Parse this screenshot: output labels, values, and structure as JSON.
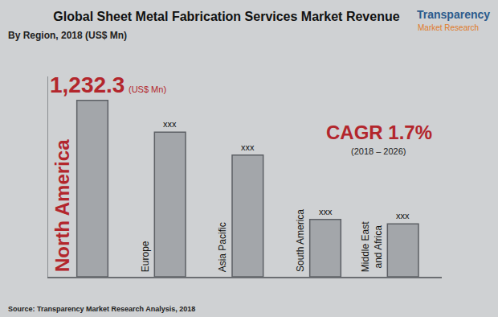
{
  "chart_data": {
    "type": "bar",
    "title": "Global Sheet Metal Fabrication Services Market Revenue",
    "subtitle": "By Region, 2018 (US$ Mn)",
    "categories": [
      "North America",
      "Europe",
      "Asia Pacific",
      "South America",
      "Middle East and Africa"
    ],
    "values": [
      1232.3,
      1010,
      850,
      400,
      370
    ],
    "color": "#a3a6aa",
    "ylim": [
      0,
      1400
    ],
    "grid": false,
    "tick_labels": false,
    "annotations": [
      {
        "category": "North America",
        "text": "1,232.3",
        "unit": "(US$ Mn)"
      },
      {
        "category": "Europe",
        "text": "xxx"
      },
      {
        "category": "Asia Pacific",
        "text": "xxx"
      },
      {
        "category": "South America",
        "text": "xxx"
      },
      {
        "category": "Middle East and Africa",
        "text": "xxx"
      }
    ],
    "cagr": {
      "text": "CAGR 1.7%",
      "period": "(2018 – 2026)"
    },
    "source": "Source: Transparency Market Research Analysis, 2018",
    "logo": [
      "Transparency",
      "Market Research"
    ]
  }
}
